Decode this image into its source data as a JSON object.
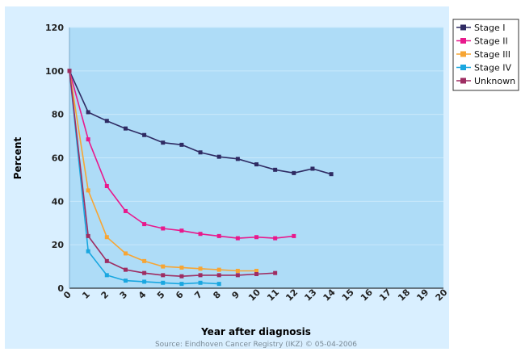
{
  "chart_data": {
    "type": "line",
    "title": "",
    "xlabel": "Year after diagnosis",
    "ylabel": "Percent",
    "source": "Source: Eindhoven Cancer Registry (IKZ) © 05-04-2006",
    "xlim": [
      0,
      20
    ],
    "ylim": [
      0,
      120
    ],
    "xticks": [
      0,
      1,
      2,
      3,
      4,
      5,
      6,
      7,
      8,
      9,
      10,
      11,
      12,
      13,
      14,
      15,
      16,
      17,
      18,
      19,
      20
    ],
    "yticks": [
      0,
      20,
      40,
      60,
      80,
      100,
      120
    ],
    "grid": true,
    "legend_position": "top-right",
    "colors": {
      "outer_background": "#d9efff",
      "plot_background": "#aedcf7",
      "gridline": "#c9e9fb"
    },
    "series": [
      {
        "name": "Stage I",
        "color": "#2f2b63",
        "x": [
          0,
          1,
          2,
          3,
          4,
          5,
          6,
          7,
          8,
          9,
          10,
          11,
          12,
          13,
          14
        ],
        "values": [
          100,
          81,
          77,
          73.5,
          70.5,
          67,
          66,
          62.5,
          60.5,
          59.5,
          57,
          54.5,
          53,
          55,
          52.5
        ]
      },
      {
        "name": "Stage II",
        "color": "#e8198c",
        "x": [
          0,
          1,
          2,
          3,
          4,
          5,
          6,
          7,
          8,
          9,
          10,
          11,
          12
        ],
        "values": [
          100,
          68.5,
          47,
          35.5,
          29.5,
          27.5,
          26.5,
          25,
          24,
          23,
          23.5,
          23,
          24
        ]
      },
      {
        "name": "Stage III",
        "color": "#f7a533",
        "x": [
          0,
          1,
          2,
          3,
          4,
          5,
          6,
          7,
          8,
          9,
          10
        ],
        "values": [
          100,
          45,
          23.5,
          16,
          12.5,
          10,
          9.5,
          9,
          8.5,
          8,
          8
        ]
      },
      {
        "name": "Stage IV",
        "color": "#1aa7e0",
        "x": [
          0,
          1,
          2,
          3,
          4,
          5,
          6,
          7,
          8
        ],
        "values": [
          100,
          17,
          6,
          3.5,
          3,
          2.5,
          2,
          2.5,
          2
        ]
      },
      {
        "name": "Unknown",
        "color": "#9e2d62",
        "x": [
          0,
          1,
          2,
          3,
          4,
          5,
          6,
          7,
          8,
          9,
          10,
          11
        ],
        "values": [
          100,
          24,
          12.5,
          8.5,
          7,
          6,
          5.5,
          6,
          6,
          6,
          6.5,
          7
        ]
      }
    ]
  }
}
